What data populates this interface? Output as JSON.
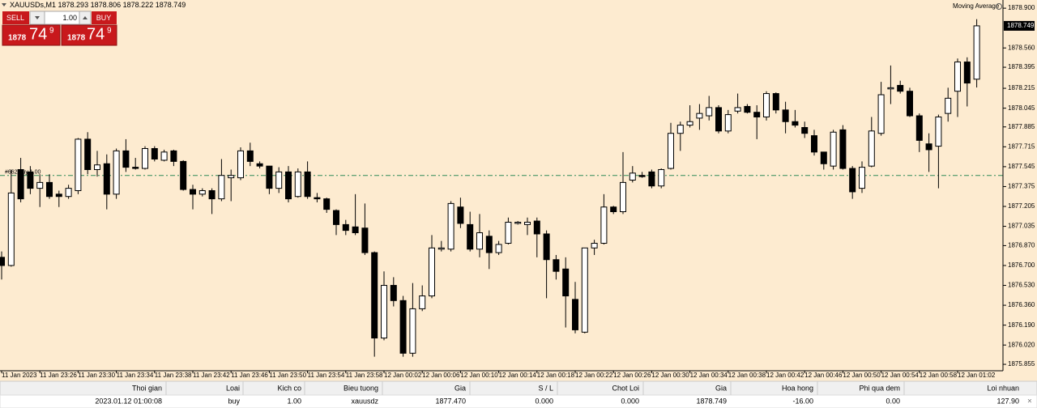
{
  "chart_data": {
    "type": "candlestick",
    "symbol": "XAUUSDs,M1",
    "indicator": "Moving Average",
    "ylim": [
      1875.8,
      1878.97
    ],
    "yticks": [
      {
        "value": 1878.9,
        "label": "1878.900"
      },
      {
        "value": 1878.56,
        "label": "1878.560"
      },
      1878.395,
      1878.215,
      1878.045,
      1877.885,
      1877.715,
      1877.545,
      1877.375,
      1877.205,
      1877.035,
      {
        "value": 1876.87,
        "label": "1876.870"
      },
      {
        "value": 1876.7,
        "label": "1876.700"
      },
      {
        "value": 1876.53,
        "label": "1876.530"
      },
      {
        "value": 1876.36,
        "label": "1876.360"
      },
      {
        "value": 1876.19,
        "label": "1876.190"
      },
      {
        "value": 1876.02,
        "label": "1876.020"
      },
      1875.855
    ],
    "categories": [
      "11 Jan 2023",
      null,
      null,
      null,
      "11 Jan 23:26",
      null,
      null,
      null,
      "11 Jan 23:30",
      null,
      null,
      null,
      "11 Jan 23:34",
      null,
      null,
      null,
      "11 Jan 23:38",
      null,
      null,
      null,
      "11 Jan 23:42",
      null,
      null,
      null,
      "11 Jan 23:46",
      null,
      null,
      null,
      "11 Jan 23:50",
      null,
      null,
      null,
      "11 Jan 23:54",
      null,
      null,
      null,
      "11 Jan 23:58",
      null,
      null,
      null,
      "12 Jan 00:02",
      null,
      null,
      null,
      "12 Jan 00:06",
      null,
      null,
      null,
      "12 Jan 00:10",
      null,
      null,
      null,
      "12 Jan 00:14",
      null,
      null,
      null,
      "12 Jan 00:18",
      null,
      null,
      null,
      "12 Jan 00:22",
      null,
      null,
      null,
      "12 Jan 00:26",
      null,
      null,
      null,
      "12 Jan 00:30",
      null,
      null,
      null,
      "12 Jan 00:34",
      null,
      null,
      null,
      "12 Jan 00:38",
      null,
      null,
      null,
      "12 Jan 00:42",
      null,
      null,
      null,
      "12 Jan 00:46",
      null,
      null,
      null,
      "12 Jan 00:50",
      null,
      null,
      null,
      "12 Jan 00:54",
      null,
      null,
      null,
      "12 Jan 00:58",
      null,
      null,
      null,
      "12 Jan 01:02",
      null,
      null
    ],
    "ohlc": [
      [
        1876.77,
        1876.82,
        1876.58,
        1876.7
      ],
      [
        1876.7,
        1877.52,
        1876.69,
        1877.32
      ],
      [
        1877.52,
        1877.62,
        1877.24,
        1877.27
      ],
      [
        1877.5,
        1877.55,
        1877.31,
        1877.36
      ],
      [
        1877.36,
        1877.48,
        1877.2,
        1877.41
      ],
      [
        1877.41,
        1877.48,
        1877.27,
        1877.29
      ],
      [
        1877.31,
        1877.34,
        1877.2,
        1877.29
      ],
      [
        1877.29,
        1877.39,
        1877.27,
        1877.36
      ],
      [
        1877.34,
        1877.79,
        1877.31,
        1877.78
      ],
      [
        1877.78,
        1877.84,
        1877.48,
        1877.52
      ],
      [
        1877.52,
        1877.68,
        1877.46,
        1877.56
      ],
      [
        1877.57,
        1877.65,
        1877.18,
        1877.31
      ],
      [
        1877.31,
        1877.7,
        1877.27,
        1877.68
      ],
      [
        1877.68,
        1877.78,
        1877.5,
        1877.54
      ],
      [
        1877.54,
        1877.62,
        1877.52,
        1877.53
      ],
      [
        1877.53,
        1877.72,
        1877.52,
        1877.7
      ],
      [
        1877.7,
        1877.72,
        1877.59,
        1877.61
      ],
      [
        1877.6,
        1877.69,
        1877.59,
        1877.67
      ],
      [
        1877.68,
        1877.69,
        1877.55,
        1877.59
      ],
      [
        1877.59,
        1877.6,
        1877.34,
        1877.35
      ],
      [
        1877.35,
        1877.39,
        1877.18,
        1877.31
      ],
      [
        1877.31,
        1877.36,
        1877.29,
        1877.34
      ],
      [
        1877.34,
        1877.36,
        1877.14,
        1877.27
      ],
      [
        1877.27,
        1877.61,
        1877.25,
        1877.47
      ],
      [
        1877.45,
        1877.52,
        1877.25,
        1877.47
      ],
      [
        1877.45,
        1877.71,
        1877.43,
        1877.68
      ],
      [
        1877.68,
        1877.75,
        1877.55,
        1877.59
      ],
      [
        1877.57,
        1877.59,
        1877.53,
        1877.55
      ],
      [
        1877.55,
        1877.55,
        1877.31,
        1877.36
      ],
      [
        1877.36,
        1877.54,
        1877.32,
        1877.5
      ],
      [
        1877.5,
        1877.55,
        1877.24,
        1877.27
      ],
      [
        1877.29,
        1877.53,
        1877.28,
        1877.5
      ],
      [
        1877.5,
        1877.59,
        1877.27,
        1877.29
      ],
      [
        1877.28,
        1877.32,
        1877.24,
        1877.27
      ],
      [
        1877.27,
        1877.28,
        1877.15,
        1877.18
      ],
      [
        1877.17,
        1877.18,
        1876.96,
        1877.05
      ],
      [
        1877.05,
        1877.09,
        1876.96,
        1877.0
      ],
      [
        1877.03,
        1877.31,
        1876.96,
        1876.98
      ],
      [
        1877.02,
        1877.23,
        1876.79,
        1876.81
      ],
      [
        1876.81,
        1876.82,
        1875.92,
        1876.08
      ],
      [
        1876.08,
        1876.65,
        1876.06,
        1876.53
      ],
      [
        1876.53,
        1876.6,
        1876.35,
        1876.4
      ],
      [
        1876.4,
        1876.44,
        1875.92,
        1875.95
      ],
      [
        1875.95,
        1876.55,
        1875.92,
        1876.33
      ],
      [
        1876.33,
        1876.53,
        1876.31,
        1876.44
      ],
      [
        1876.44,
        1876.96,
        1876.42,
        1876.85
      ],
      [
        1876.84,
        1876.91,
        1876.82,
        1876.85
      ],
      [
        1876.84,
        1877.25,
        1876.82,
        1877.23
      ],
      [
        1877.2,
        1877.28,
        1877.02,
        1877.06
      ],
      [
        1877.05,
        1877.16,
        1876.82,
        1876.84
      ],
      [
        1876.84,
        1877.14,
        1876.77,
        1876.98
      ],
      [
        1876.95,
        1877.0,
        1876.67,
        1876.81
      ],
      [
        1876.81,
        1876.91,
        1876.79,
        1876.88
      ],
      [
        1876.89,
        1877.11,
        1876.88,
        1877.07
      ],
      [
        1877.06,
        1877.08,
        1877.05,
        1877.07
      ],
      [
        1877.05,
        1877.11,
        1876.96,
        1877.07
      ],
      [
        1877.08,
        1877.11,
        1876.77,
        1876.97
      ],
      [
        1876.97,
        1877.0,
        1876.42,
        1876.75
      ],
      [
        1876.75,
        1876.79,
        1876.58,
        1876.65
      ],
      [
        1876.67,
        1876.77,
        1876.17,
        1876.44
      ],
      [
        1876.41,
        1876.56,
        1876.12,
        1876.15
      ],
      [
        1876.13,
        1876.85,
        1876.12,
        1876.85
      ],
      [
        1876.85,
        1876.92,
        1876.79,
        1876.89
      ],
      [
        1876.89,
        1877.31,
        1876.88,
        1877.2
      ],
      [
        1877.2,
        1877.21,
        1877.14,
        1877.16
      ],
      [
        1877.16,
        1877.67,
        1877.14,
        1877.41
      ],
      [
        1877.43,
        1877.55,
        1877.41,
        1877.49
      ],
      [
        1877.47,
        1877.5,
        1877.45,
        1877.46
      ],
      [
        1877.5,
        1877.52,
        1877.36,
        1877.38
      ],
      [
        1877.38,
        1877.53,
        1877.36,
        1877.52
      ],
      [
        1877.53,
        1877.92,
        1877.52,
        1877.83
      ],
      [
        1877.83,
        1877.93,
        1877.68,
        1877.9
      ],
      [
        1877.9,
        1878.07,
        1877.88,
        1877.93
      ],
      [
        1877.96,
        1878.08,
        1877.86,
        1878.0
      ],
      [
        1877.98,
        1878.15,
        1877.94,
        1878.05
      ],
      [
        1878.05,
        1878.07,
        1877.83,
        1877.85
      ],
      [
        1877.85,
        1878.03,
        1877.83,
        1877.99
      ],
      [
        1878.02,
        1878.17,
        1878.0,
        1878.05
      ],
      [
        1878.06,
        1878.08,
        1878.0,
        1878.01
      ],
      [
        1878.01,
        1878.07,
        1877.78,
        1877.97
      ],
      [
        1877.97,
        1878.19,
        1877.94,
        1878.17
      ],
      [
        1878.17,
        1878.18,
        1878.0,
        1878.03
      ],
      [
        1878.03,
        1878.1,
        1877.83,
        1877.93
      ],
      [
        1877.93,
        1878.03,
        1877.88,
        1877.9
      ],
      [
        1877.88,
        1877.93,
        1877.79,
        1877.83
      ],
      [
        1877.81,
        1877.86,
        1877.64,
        1877.67
      ],
      [
        1877.67,
        1877.67,
        1877.52,
        1877.57
      ],
      [
        1877.55,
        1877.86,
        1877.52,
        1877.84
      ],
      [
        1877.86,
        1877.9,
        1877.52,
        1877.53
      ],
      [
        1877.53,
        1877.55,
        1877.27,
        1877.33
      ],
      [
        1877.36,
        1877.59,
        1877.32,
        1877.54
      ],
      [
        1877.55,
        1877.97,
        1877.54,
        1877.85
      ],
      [
        1877.83,
        1878.27,
        1877.81,
        1878.16
      ],
      [
        1878.21,
        1878.41,
        1878.08,
        1878.22
      ],
      [
        1878.24,
        1878.28,
        1878.17,
        1878.19
      ],
      [
        1878.19,
        1878.22,
        1877.97,
        1877.98
      ],
      [
        1877.98,
        1878.0,
        1877.67,
        1877.77
      ],
      [
        1877.74,
        1877.83,
        1877.5,
        1877.69
      ],
      [
        1877.72,
        1877.99,
        1877.36,
        1877.97
      ],
      [
        1878.0,
        1878.22,
        1877.93,
        1878.13
      ],
      [
        1878.19,
        1878.47,
        1877.97,
        1878.44
      ],
      [
        1878.44,
        1878.48,
        1878.06,
        1878.26
      ],
      [
        1878.293,
        1878.806,
        1878.222,
        1878.749
      ]
    ],
    "up_color": "#ffffff",
    "down_color": "#000000",
    "order_line": {
      "label": "#662 buy 1.00",
      "value": 1877.47,
      "color": "#2e8b57"
    }
  },
  "trade_panel": {
    "sell": "SELL",
    "buy": "BUY",
    "lot": "1.00",
    "sell_price": {
      "big": "1878",
      "main": "74",
      "sup": "9"
    },
    "buy_price": {
      "big": "1878",
      "main": "74",
      "sup": "9"
    }
  },
  "trade_table": {
    "headers": [
      "Thoi gian",
      "Loai",
      "Kich co",
      "Bieu tuong",
      "Gia",
      "S / L",
      "Chot Loi",
      "Gia",
      "Hoa hong",
      "Phi qua dem",
      "Loi nhuan"
    ],
    "rows": [
      [
        "2023.01.12 01:00:08",
        "buy",
        "1.00",
        "xauusdz",
        "1877.470",
        "0.000",
        "0.000",
        "1878.749",
        "-16.00",
        "0.00",
        "127.90"
      ]
    ],
    "close": "×"
  }
}
